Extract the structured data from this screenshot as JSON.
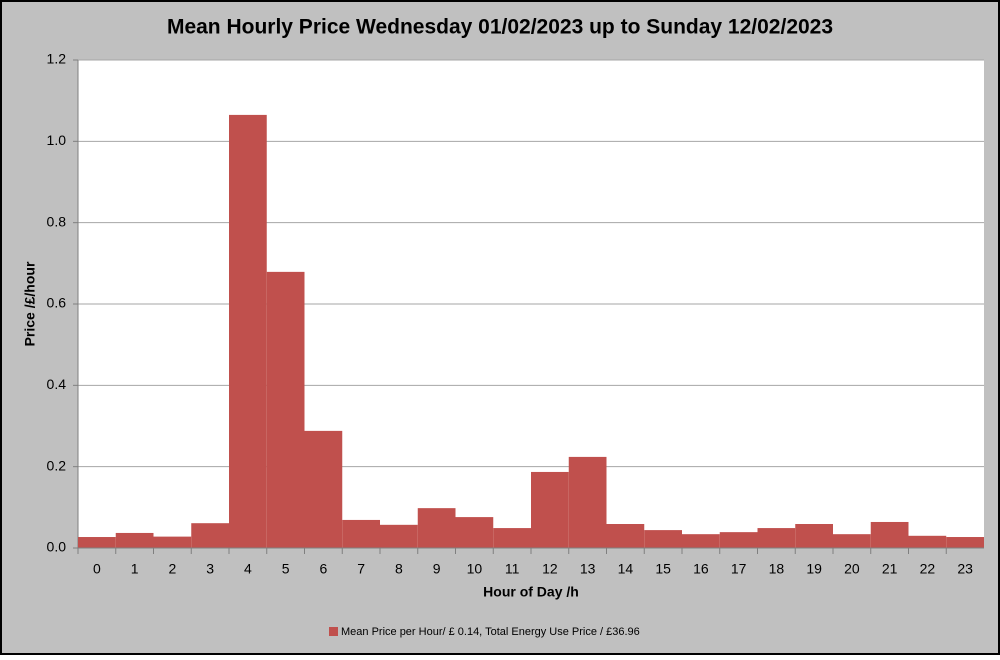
{
  "chart_data": {
    "type": "bar",
    "title": "Mean Hourly Price Wednesday 01/02/2023 up to Sunday 12/02/2023",
    "x_label": "Hour of Day /h",
    "y_label": "Price /£/hour",
    "categories": [
      "0",
      "1",
      "2",
      "3",
      "4",
      "5",
      "6",
      "7",
      "8",
      "9",
      "10",
      "11",
      "12",
      "13",
      "14",
      "15",
      "16",
      "17",
      "18",
      "19",
      "20",
      "21",
      "22",
      "23"
    ],
    "series": [
      {
        "name": "Mean Price per Hour/ £ 0.14, Total Energy Use Price / £36.96",
        "color": "#c0504d",
        "values": [
          0.027,
          0.037,
          0.028,
          0.061,
          1.065,
          0.679,
          0.288,
          0.069,
          0.057,
          0.098,
          0.076,
          0.049,
          0.187,
          0.224,
          0.059,
          0.044,
          0.034,
          0.039,
          0.049,
          0.059,
          0.034,
          0.064,
          0.03,
          0.027
        ]
      }
    ],
    "ylim": [
      0,
      1.2
    ],
    "yticks": [
      {
        "value": 0,
        "label": "0.0"
      },
      0.2,
      0.4,
      0.6,
      0.8,
      {
        "value": 1,
        "label": "1.0"
      },
      1.2
    ],
    "grid": true,
    "legend": "bottom"
  }
}
